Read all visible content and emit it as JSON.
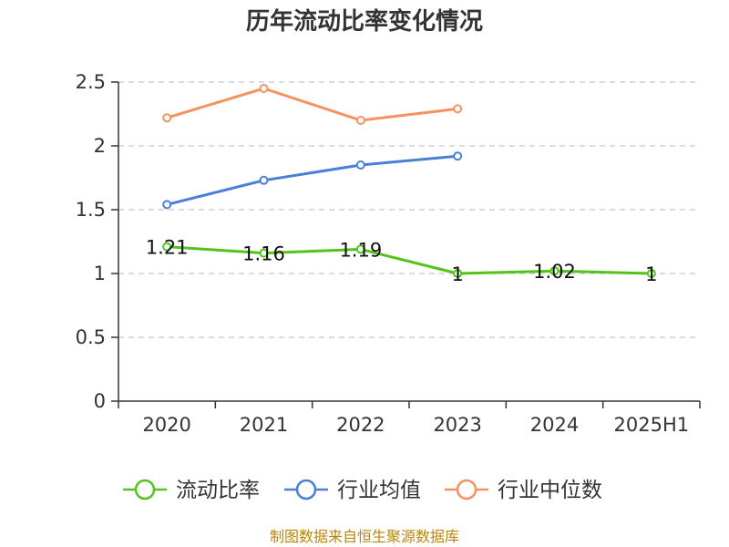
{
  "chart_data": {
    "type": "line",
    "title": "历年流动比率变化情况",
    "categories": [
      "2020",
      "2021",
      "2022",
      "2023",
      "2024",
      "2025H1"
    ],
    "ylim": [
      0,
      2.5
    ],
    "yticks": [
      "0",
      "0.5",
      "1",
      "1.5",
      "2",
      "2.5"
    ],
    "grid": true,
    "legend_position": "bottom",
    "series": [
      {
        "name": "流动比率",
        "color": "#52c41a",
        "values": [
          1.21,
          1.16,
          1.19,
          1,
          1.02,
          1
        ],
        "labels": [
          "1.21",
          "1.16",
          "1.19",
          "1",
          "1.02",
          "1"
        ]
      },
      {
        "name": "行业均值",
        "color": "#4a7fd6",
        "values": [
          1.54,
          1.73,
          1.85,
          1.92,
          null,
          null
        ]
      },
      {
        "name": "行业中位数",
        "color": "#f5925f",
        "values": [
          2.22,
          2.45,
          2.2,
          2.29,
          null,
          null
        ]
      }
    ]
  },
  "footer": {
    "source": "制图数据来自恒生聚源数据库"
  }
}
